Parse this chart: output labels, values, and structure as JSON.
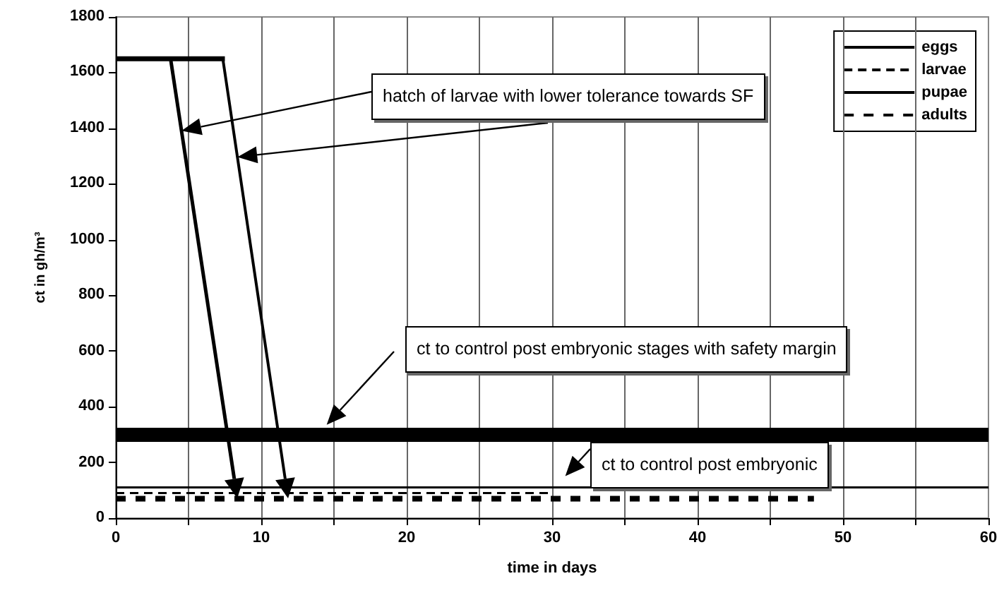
{
  "chart_data": {
    "type": "line",
    "xlabel": "time in days",
    "ylabel": "ct in gh/m³",
    "xlim": [
      0,
      60
    ],
    "xticks": [
      0,
      {
        "value": 5,
        "label": null
      },
      10,
      {
        "value": 15,
        "label": null
      },
      20,
      {
        "value": 25,
        "label": null
      },
      30,
      {
        "value": 35,
        "label": null
      },
      40,
      {
        "value": 45,
        "label": null
      },
      50,
      {
        "value": 55,
        "label": null
      },
      60
    ],
    "ylim": [
      0,
      1800
    ],
    "yticks": [
      0,
      200,
      400,
      600,
      800,
      1000,
      1200,
      1400,
      1600,
      1800
    ],
    "grid": "x",
    "legend": "top right",
    "marker": "none",
    "series": [
      {
        "name": "eggs",
        "color": "#000000",
        "line_style": "solid",
        "x": [
          0,
          7.5
        ],
        "values": [
          1650,
          1650
        ]
      },
      {
        "name": "larvae",
        "color": "#000000",
        "line_style": "dashed",
        "x": [
          0,
          30
        ],
        "values": [
          90,
          90
        ]
      },
      {
        "name": "pupae",
        "color": "#000000",
        "line_style": "solid",
        "x": [
          0,
          60
        ],
        "values": [
          110,
          110
        ]
      },
      {
        "name": "adults",
        "color": "#000000",
        "line_style": "dashed",
        "x": [
          0,
          48
        ],
        "values": [
          70,
          70
        ]
      }
    ],
    "ref_lines": [
      {
        "axis": "y",
        "value": 300,
        "color": "#000000"
      }
    ],
    "annotations": [
      "hatch of larvae with lower tolerance towards SF",
      "ct to control post embryonic stages with safety margin",
      "ct to control post embryonic"
    ]
  }
}
